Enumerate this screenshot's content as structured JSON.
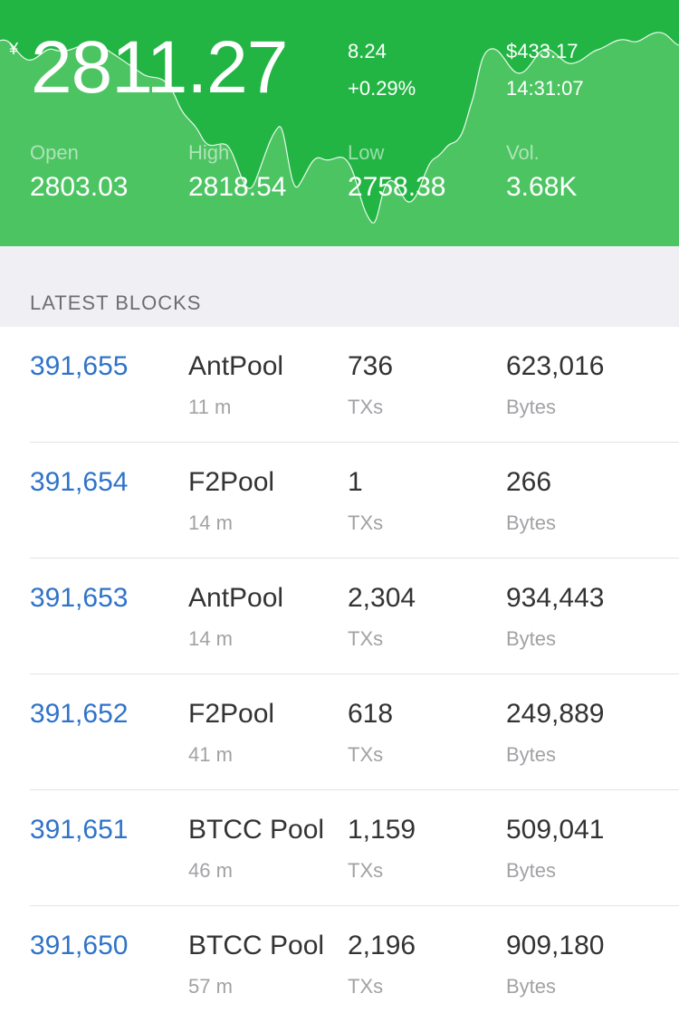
{
  "ticker": {
    "currency_symbol": "¥",
    "price": "2811.27",
    "change": "8.24",
    "change_pct": "+0.29%",
    "usd_price": "$433.17",
    "time": "14:31:07",
    "stats": {
      "open_label": "Open",
      "open_value": "2803.03",
      "high_label": "High",
      "high_value": "2818.54",
      "low_label": "Low",
      "low_value": "2758.38",
      "vol_label": "Vol.",
      "vol_value": "3.68K"
    },
    "colors": {
      "background": "#22b543",
      "chart_fill": "#4cc462",
      "chart_line": "#ffffff"
    }
  },
  "section": {
    "title": "LATEST BLOCKS"
  },
  "blocks": [
    {
      "height": "391,655",
      "pool": "AntPool",
      "age": "11 m",
      "txs": "736",
      "txs_unit": "TXs",
      "bytes": "623,016",
      "bytes_unit": "Bytes"
    },
    {
      "height": "391,654",
      "pool": "F2Pool",
      "age": "14 m",
      "txs": "1",
      "txs_unit": "TXs",
      "bytes": "266",
      "bytes_unit": "Bytes"
    },
    {
      "height": "391,653",
      "pool": "AntPool",
      "age": "14 m",
      "txs": "2,304",
      "txs_unit": "TXs",
      "bytes": "934,443",
      "bytes_unit": "Bytes"
    },
    {
      "height": "391,652",
      "pool": "F2Pool",
      "age": "41 m",
      "txs": "618",
      "txs_unit": "TXs",
      "bytes": "249,889",
      "bytes_unit": "Bytes"
    },
    {
      "height": "391,651",
      "pool": "BTCC Pool",
      "age": "46 m",
      "txs": "1,159",
      "txs_unit": "TXs",
      "bytes": "509,041",
      "bytes_unit": "Bytes"
    },
    {
      "height": "391,650",
      "pool": "BTCC Pool",
      "age": "57 m",
      "txs": "2,196",
      "txs_unit": "TXs",
      "bytes": "909,180",
      "bytes_unit": "Bytes"
    }
  ]
}
